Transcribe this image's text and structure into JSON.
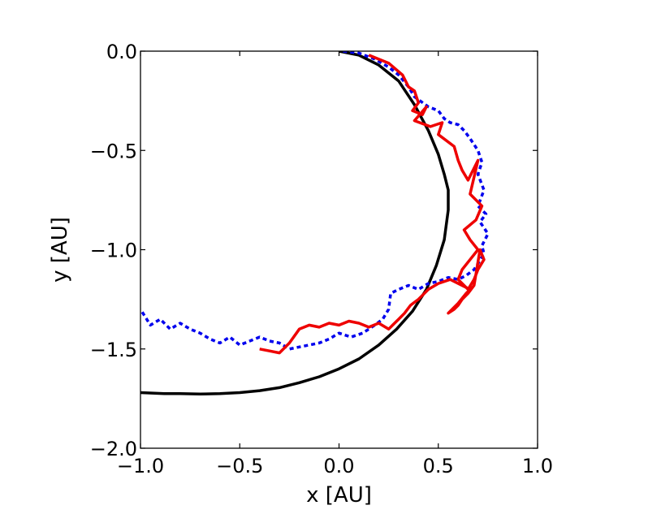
{
  "chart_data": {
    "type": "line",
    "title": "",
    "xlabel": "x [AU]",
    "ylabel": "y [AU]",
    "xlim": [
      -1.0,
      1.0
    ],
    "ylim": [
      -2.0,
      0.0
    ],
    "xticks": [
      -1.0,
      -0.5,
      0.0,
      0.5,
      1.0
    ],
    "yticks": [
      0.0,
      -0.5,
      -1.0,
      -1.5,
      -2.0
    ],
    "xtick_labels": [
      "−1.0",
      "−0.5",
      "0.0",
      "0.5",
      "1.0"
    ],
    "ytick_labels": [
      "0.0",
      "−0.5",
      "−1.0",
      "−1.5",
      "−2.0"
    ],
    "grid": false,
    "legend": "none",
    "series": [
      {
        "style": "solid",
        "color": "#000000",
        "x": [
          0.0,
          0.1,
          0.2,
          0.3,
          0.38,
          0.45,
          0.5,
          0.53,
          0.55,
          0.55,
          0.53,
          0.49,
          0.44,
          0.37,
          0.29,
          0.2,
          0.1,
          0.0,
          -0.1,
          -0.2,
          -0.3,
          -0.4,
          -0.5,
          -0.6,
          -0.7,
          -0.8,
          -0.88,
          -1.0
        ],
        "y": [
          0.0,
          -0.02,
          -0.07,
          -0.15,
          -0.27,
          -0.4,
          -0.52,
          -0.62,
          -0.7,
          -0.8,
          -0.95,
          -1.08,
          -1.2,
          -1.31,
          -1.4,
          -1.48,
          -1.55,
          -1.6,
          -1.64,
          -1.67,
          -1.695,
          -1.71,
          -1.72,
          -1.725,
          -1.727,
          -1.725,
          -1.725,
          -1.72
        ]
      },
      {
        "style": "dashed",
        "color": "#0000ee",
        "x": [
          0.02,
          0.1,
          0.18,
          0.25,
          0.3,
          0.35,
          0.38,
          0.45,
          0.5,
          0.53,
          0.56,
          0.6,
          0.63,
          0.66,
          0.7,
          0.72,
          0.7,
          0.73,
          0.7,
          0.74,
          0.71,
          0.75,
          0.72,
          0.73,
          0.7,
          0.68,
          0.64,
          0.6,
          0.55,
          0.5,
          0.45,
          0.4,
          0.35,
          0.3,
          0.26,
          0.25,
          0.22,
          0.18,
          0.12,
          0.06,
          0.0,
          -0.05,
          -0.1,
          -0.15,
          -0.2,
          -0.25,
          -0.3,
          -0.35,
          -0.4,
          -0.45,
          -0.5,
          -0.55,
          -0.6,
          -0.65,
          -0.7,
          -0.75,
          -0.8,
          -0.85,
          -0.9,
          -0.95,
          -1.0
        ],
        "y": [
          0.0,
          -0.01,
          -0.04,
          -0.08,
          -0.12,
          -0.18,
          -0.23,
          -0.28,
          -0.3,
          -0.34,
          -0.36,
          -0.37,
          -0.4,
          -0.44,
          -0.5,
          -0.56,
          -0.62,
          -0.7,
          -0.78,
          -0.82,
          -0.86,
          -0.92,
          -0.98,
          -1.02,
          -1.07,
          -1.1,
          -1.13,
          -1.15,
          -1.14,
          -1.16,
          -1.17,
          -1.2,
          -1.18,
          -1.2,
          -1.22,
          -1.3,
          -1.35,
          -1.38,
          -1.42,
          -1.44,
          -1.42,
          -1.45,
          -1.47,
          -1.48,
          -1.49,
          -1.5,
          -1.47,
          -1.46,
          -1.44,
          -1.46,
          -1.48,
          -1.44,
          -1.47,
          -1.45,
          -1.42,
          -1.4,
          -1.37,
          -1.4,
          -1.35,
          -1.38,
          -1.3
        ]
      },
      {
        "style": "solid",
        "color": "#ee0000",
        "x": [
          0.15,
          0.25,
          0.32,
          0.35,
          0.38,
          0.4,
          0.37,
          0.42,
          0.44,
          0.38,
          0.46,
          0.52,
          0.5,
          0.58,
          0.6,
          0.62,
          0.65,
          0.7,
          0.66,
          0.72,
          0.69,
          0.63,
          0.66,
          0.7,
          0.66,
          0.62,
          0.6,
          0.65,
          0.68,
          0.7,
          0.73,
          0.71,
          0.68,
          0.65,
          0.62,
          0.6,
          0.58,
          0.55,
          0.6,
          0.64,
          0.66,
          0.62,
          0.56,
          0.5,
          0.45,
          0.42,
          0.4,
          0.36,
          0.33,
          0.3,
          0.27,
          0.25,
          0.2,
          0.15,
          0.1,
          0.05,
          0.0,
          -0.05,
          -0.1,
          -0.15,
          -0.2,
          -0.25,
          -0.3,
          -0.35,
          -0.4
        ],
        "y": [
          -0.02,
          -0.06,
          -0.12,
          -0.18,
          -0.2,
          -0.26,
          -0.3,
          -0.32,
          -0.28,
          -0.35,
          -0.38,
          -0.36,
          -0.42,
          -0.48,
          -0.55,
          -0.6,
          -0.65,
          -0.55,
          -0.72,
          -0.78,
          -0.85,
          -0.9,
          -0.95,
          -1.0,
          -1.05,
          -1.1,
          -1.15,
          -1.2,
          -1.15,
          -1.1,
          -1.05,
          -1.0,
          -1.18,
          -1.22,
          -1.25,
          -1.28,
          -1.3,
          -1.32,
          -1.27,
          -1.22,
          -1.2,
          -1.18,
          -1.15,
          -1.17,
          -1.2,
          -1.23,
          -1.25,
          -1.28,
          -1.32,
          -1.35,
          -1.38,
          -1.4,
          -1.37,
          -1.39,
          -1.37,
          -1.36,
          -1.38,
          -1.37,
          -1.39,
          -1.38,
          -1.4,
          -1.47,
          -1.52,
          -1.51,
          -1.5
        ]
      }
    ]
  }
}
